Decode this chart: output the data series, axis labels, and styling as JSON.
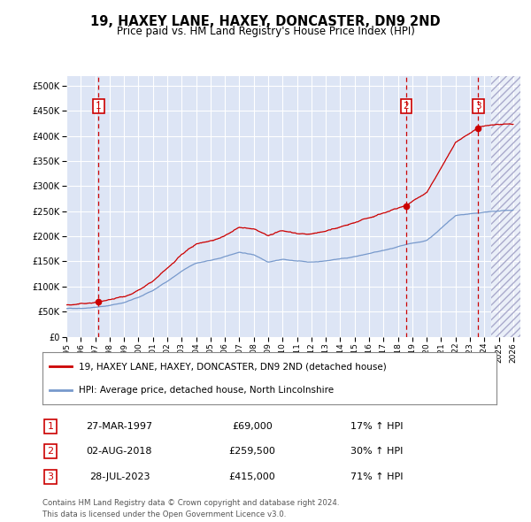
{
  "title": "19, HAXEY LANE, HAXEY, DONCASTER, DN9 2ND",
  "subtitle": "Price paid vs. HM Land Registry's House Price Index (HPI)",
  "property_label": "19, HAXEY LANE, HAXEY, DONCASTER, DN9 2ND (detached house)",
  "hpi_label": "HPI: Average price, detached house, North Lincolnshire",
  "footer1": "Contains HM Land Registry data © Crown copyright and database right 2024.",
  "footer2": "This data is licensed under the Open Government Licence v3.0.",
  "transactions": [
    {
      "num": 1,
      "date": "27-MAR-1997",
      "price": "£69,000",
      "hpi": "17% ↑ HPI",
      "year": 1997.23,
      "value": 69000
    },
    {
      "num": 2,
      "date": "02-AUG-2018",
      "price": "£259,500",
      "hpi": "30% ↑ HPI",
      "year": 2018.58,
      "value": 259500
    },
    {
      "num": 3,
      "date": "28-JUL-2023",
      "price": "£415,000",
      "hpi": "71% ↑ HPI",
      "year": 2023.57,
      "value": 415000
    }
  ],
  "xlim": [
    1995.0,
    2026.5
  ],
  "ylim": [
    0,
    520000
  ],
  "yticks": [
    0,
    50000,
    100000,
    150000,
    200000,
    250000,
    300000,
    350000,
    400000,
    450000,
    500000
  ],
  "xticks": [
    1995,
    1996,
    1997,
    1998,
    1999,
    2000,
    2001,
    2002,
    2003,
    2004,
    2005,
    2006,
    2007,
    2008,
    2009,
    2010,
    2011,
    2012,
    2013,
    2014,
    2015,
    2016,
    2017,
    2018,
    2019,
    2020,
    2021,
    2022,
    2023,
    2024,
    2025,
    2026
  ],
  "bg_color": "#dde5f5",
  "grid_color": "#ffffff",
  "red_color": "#cc0000",
  "blue_color": "#7799cc",
  "vline_color": "#cc0000",
  "box_color": "#cc0000",
  "hatch_start": 2024.5,
  "future_color": "#c8c8d8"
}
